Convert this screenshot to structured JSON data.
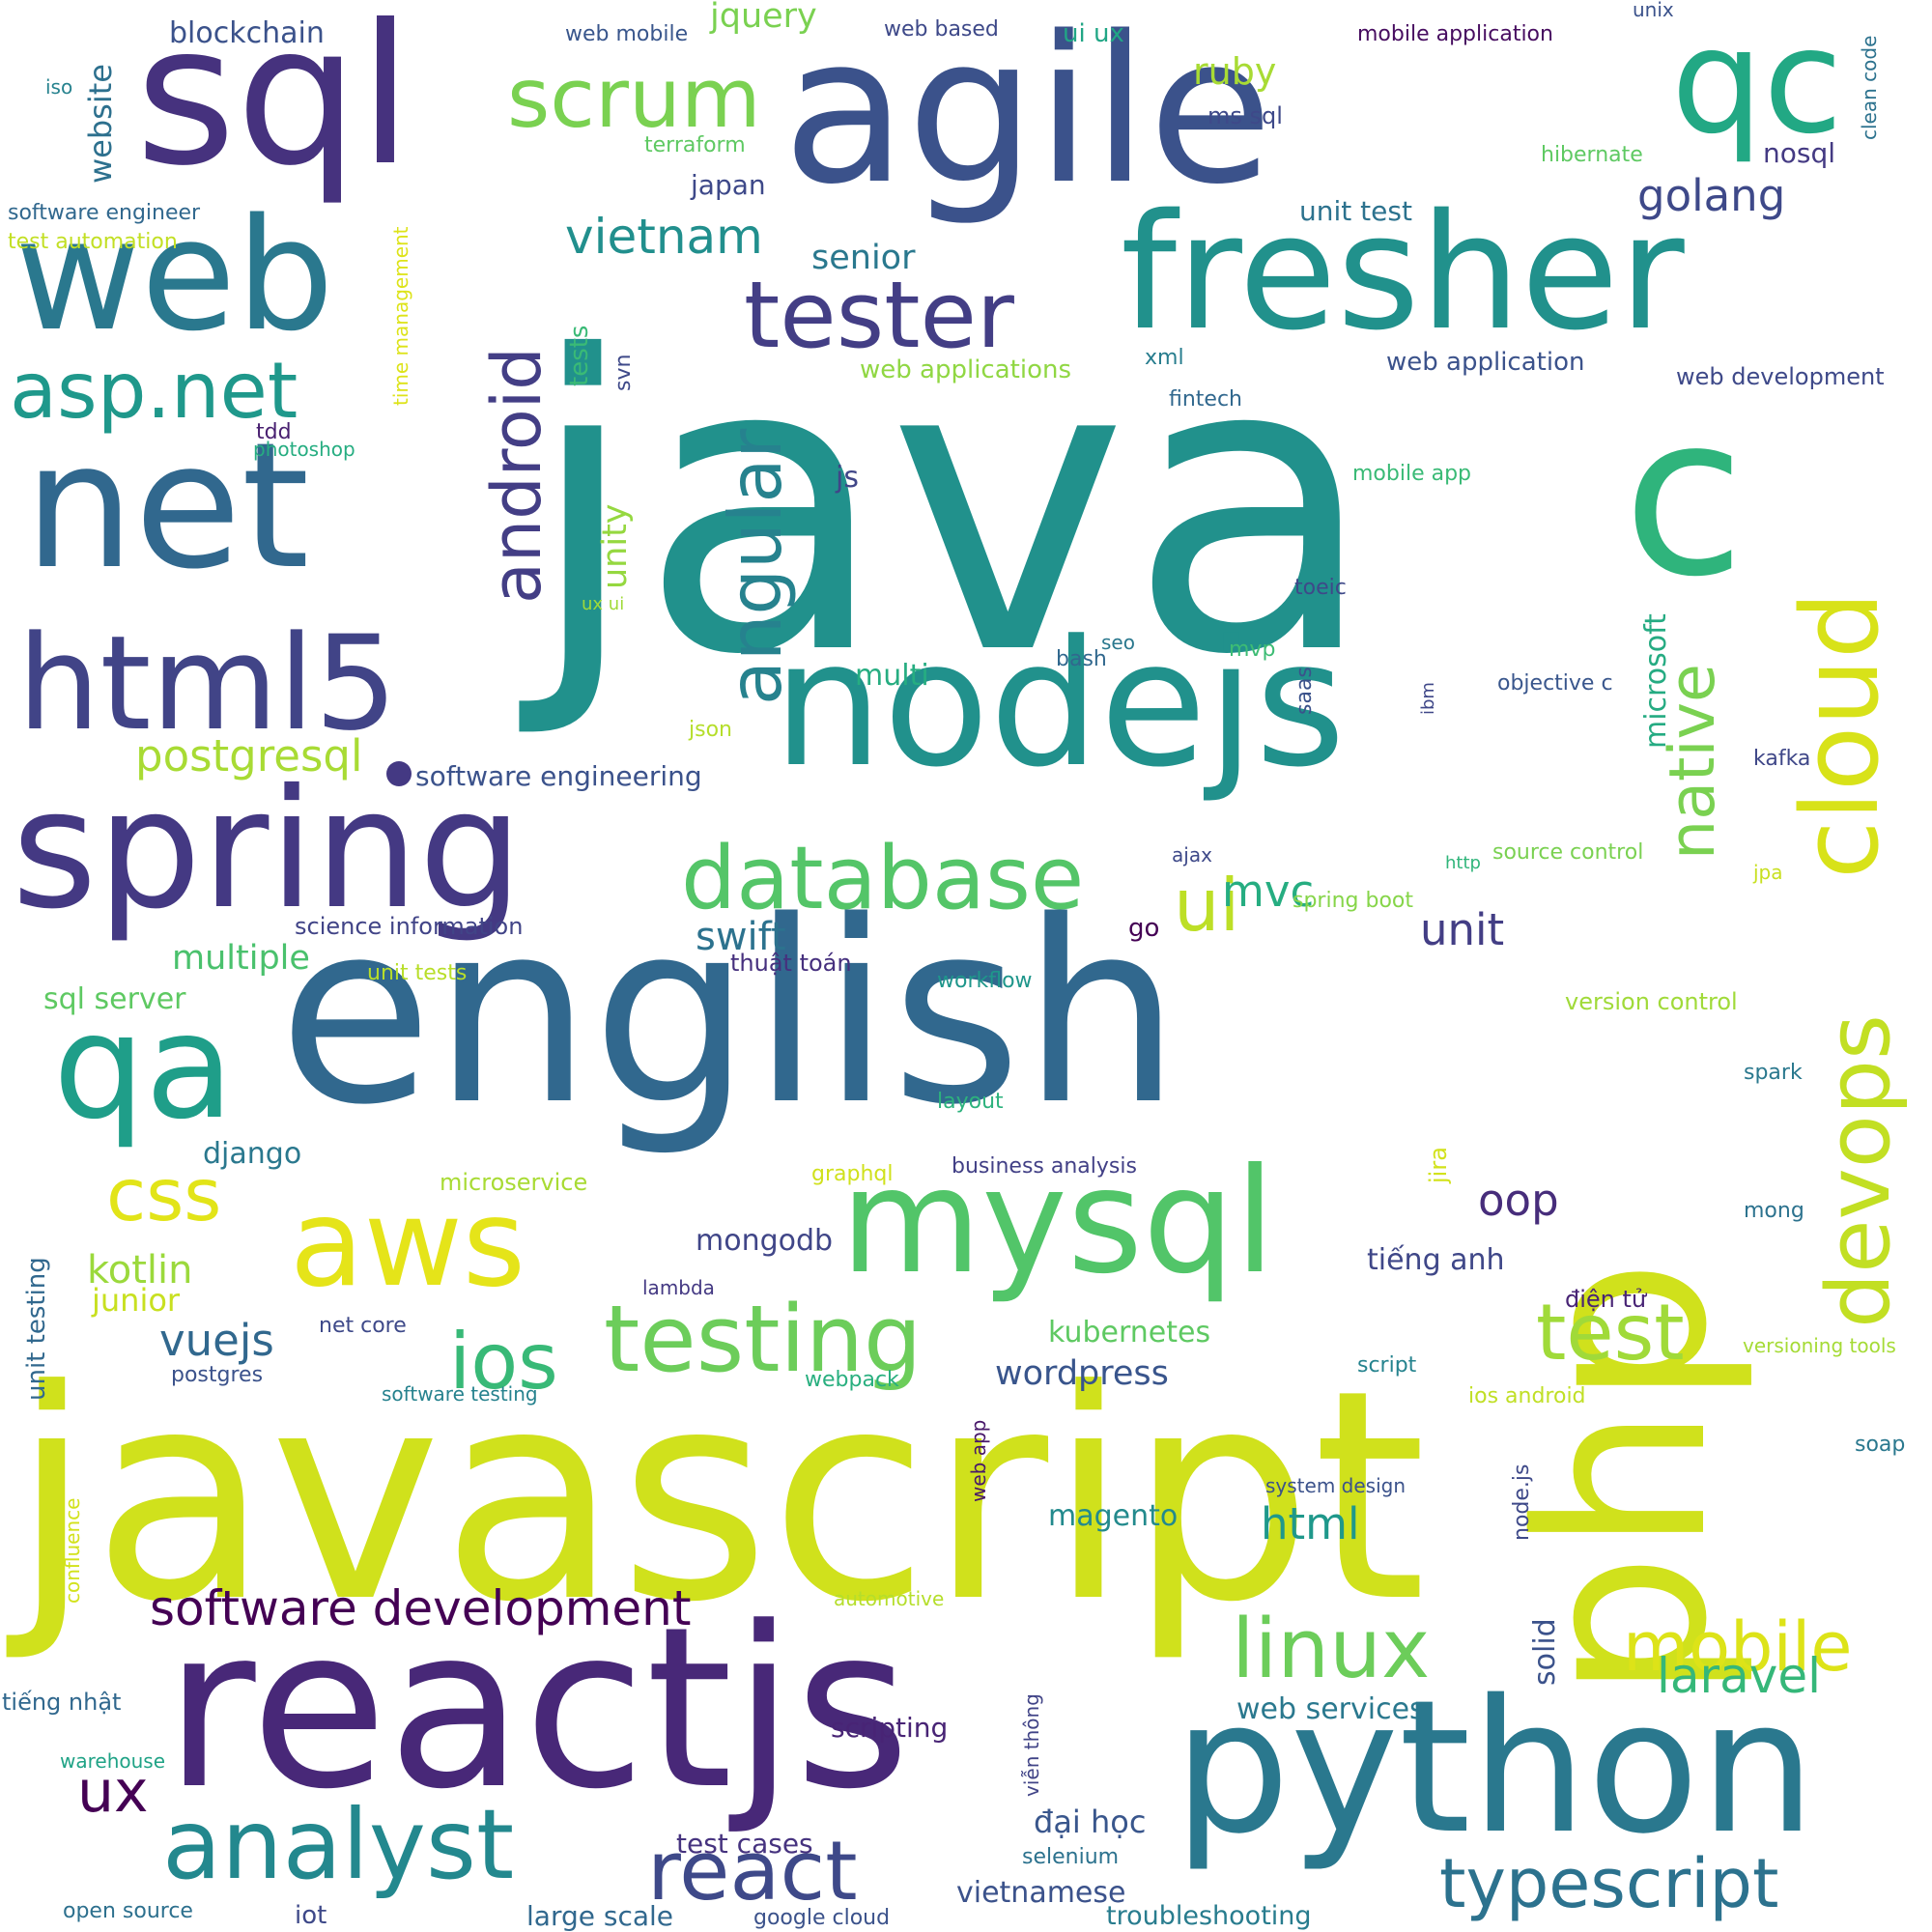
{
  "words": [
    {
      "text": "java",
      "color": "#21918c",
      "vertical": false
    },
    {
      "text": "javascript",
      "color": "#d0e11c",
      "vertical": false
    },
    {
      "text": "english",
      "color": "#31688e",
      "vertical": false
    },
    {
      "text": "reactjs",
      "color": "#482878",
      "vertical": false
    },
    {
      "text": "php",
      "color": "#d0e11c",
      "vertical": true
    },
    {
      "text": "agile",
      "color": "#3b528b",
      "vertical": false
    },
    {
      "text": "python",
      "color": "#2a788e",
      "vertical": false
    },
    {
      "text": "sql",
      "color": "#46327e",
      "vertical": false
    },
    {
      "text": "nodejs",
      "color": "#21918c",
      "vertical": false
    },
    {
      "text": "net",
      "color": "#31688e",
      "vertical": false
    },
    {
      "text": "web",
      "color": "#2a788e",
      "vertical": false
    },
    {
      "text": "fresher",
      "color": "#21918c",
      "vertical": false
    },
    {
      "text": "spring",
      "color": "#443983",
      "vertical": false
    },
    {
      "text": "c",
      "color": "#2fb47c",
      "vertical": false
    },
    {
      "text": "qc",
      "color": "#22a884",
      "vertical": false
    },
    {
      "text": "mysql",
      "color": "#52c569",
      "vertical": false
    },
    {
      "text": "qa",
      "color": "#1f9e89",
      "vertical": false
    },
    {
      "text": "html5",
      "color": "#414487",
      "vertical": false
    },
    {
      "text": "cloud",
      "color": "#d8e219",
      "vertical": true
    },
    {
      "text": "aws",
      "color": "#e5e419",
      "vertical": false
    },
    {
      "text": "tester",
      "color": "#433e85",
      "vertical": false
    },
    {
      "text": "testing",
      "color": "#6ccd5a",
      "vertical": false
    },
    {
      "text": "analyst",
      "color": "#23888e",
      "vertical": false
    },
    {
      "text": "devops",
      "color": "#c2df23",
      "vertical": true
    },
    {
      "text": "database",
      "color": "#54c568",
      "vertical": false
    },
    {
      "text": "scrum",
      "color": "#7ad151",
      "vertical": false
    },
    {
      "text": "asp.net",
      "color": "#1f988b",
      "vertical": false
    },
    {
      "text": "react",
      "color": "#3e4989",
      "vertical": false
    },
    {
      "text": "typescript",
      "color": "#2c728e",
      "vertical": false
    },
    {
      "text": "linux",
      "color": "#6ccd5a",
      "vertical": false
    },
    {
      "text": "test",
      "color": "#a0da39",
      "vertical": false
    },
    {
      "text": "mobile",
      "color": "#dde318",
      "vertical": false
    },
    {
      "text": "android",
      "color": "#433e85",
      "vertical": true
    },
    {
      "text": "angular",
      "color": "#26828e",
      "vertical": true
    },
    {
      "text": "ios",
      "color": "#38b977",
      "vertical": false
    },
    {
      "text": "css",
      "color": "#e2e418",
      "vertical": false
    },
    {
      "text": "native",
      "color": "#7ad151",
      "vertical": true
    },
    {
      "text": "ui",
      "color": "#bddf26",
      "vertical": false
    },
    {
      "text": "software development",
      "color": "#440154",
      "vertical": false
    },
    {
      "text": "ux",
      "color": "#440154",
      "vertical": false
    },
    {
      "text": "vietnam",
      "color": "#218f8d",
      "vertical": false
    },
    {
      "text": "laravel",
      "color": "#35b779",
      "vertical": false
    },
    {
      "text": "golang",
      "color": "#3e4989",
      "vertical": false
    },
    {
      "text": "postgresql",
      "color": "#a8db34",
      "vertical": false
    },
    {
      "text": "vuejs",
      "color": "#31688e",
      "vertical": false
    },
    {
      "text": "unit",
      "color": "#433e85",
      "vertical": false
    },
    {
      "text": "html",
      "color": "#1f988b",
      "vertical": false
    },
    {
      "text": "mvc",
      "color": "#26ad81",
      "vertical": false
    },
    {
      "text": "swift",
      "color": "#2c728e",
      "vertical": false
    },
    {
      "text": "oop",
      "color": "#472d7b",
      "vertical": false
    },
    {
      "text": "kotlin",
      "color": "#9bd93c",
      "vertical": false
    },
    {
      "text": "wordpress",
      "color": "#39558c",
      "vertical": false
    },
    {
      "text": "multiple",
      "color": "#4ac16d",
      "vertical": false
    },
    {
      "text": "senior",
      "color": "#2a788e",
      "vertical": false
    },
    {
      "text": "ruby",
      "color": "#a8db34",
      "vertical": false
    },
    {
      "text": "jquery",
      "color": "#7ad151",
      "vertical": false
    },
    {
      "text": "junior",
      "color": "#c8e020",
      "vertical": false
    },
    {
      "text": "solid",
      "color": "#3b528b",
      "vertical": true
    },
    {
      "text": "microsoft",
      "color": "#25ab82",
      "vertical": true
    },
    {
      "text": "unity",
      "color": "#95d840",
      "vertical": true
    },
    {
      "text": "website",
      "color": "#2d708e",
      "vertical": true
    },
    {
      "text": "mongodb",
      "color": "#404688",
      "vertical": false
    },
    {
      "text": "tiếng anh",
      "color": "#3f4788",
      "vertical": false
    },
    {
      "text": "đại học",
      "color": "#39568c",
      "vertical": false
    },
    {
      "text": "blockchain",
      "color": "#3b528b",
      "vertical": false
    },
    {
      "text": "django",
      "color": "#2a788e",
      "vertical": false
    },
    {
      "text": "magento",
      "color": "#238a8d",
      "vertical": false
    },
    {
      "text": "web services",
      "color": "#2a788e",
      "vertical": false
    },
    {
      "text": "scripting",
      "color": "#482475",
      "vertical": false
    },
    {
      "text": "vietnamese",
      "color": "#3b528b",
      "vertical": false
    },
    {
      "text": "test cases",
      "color": "#46337f",
      "vertical": false
    },
    {
      "text": "large scale",
      "color": "#31688e",
      "vertical": false
    },
    {
      "text": "kubernetes",
      "color": "#5ec962",
      "vertical": false
    },
    {
      "text": "sql server",
      "color": "#5ec962",
      "vertical": false
    },
    {
      "text": "multi",
      "color": "#26ad81",
      "vertical": false
    },
    {
      "text": "unit test",
      "color": "#2c728e",
      "vertical": false
    },
    {
      "text": "software engineering",
      "color": "#3b528b",
      "vertical": false
    },
    {
      "text": "science information",
      "color": "#414487",
      "vertical": false
    },
    {
      "text": "japan",
      "color": "#3e4989",
      "vertical": false
    },
    {
      "text": "nosql",
      "color": "#443a83",
      "vertical": false
    },
    {
      "text": "web applications",
      "color": "#90d743",
      "vertical": false
    },
    {
      "text": "web application",
      "color": "#3b528b",
      "vertical": false
    },
    {
      "text": "web development",
      "color": "#3e4989",
      "vertical": false
    },
    {
      "text": "business analysis",
      "color": "#424086",
      "vertical": false
    },
    {
      "text": "troubleshooting",
      "color": "#287c8e",
      "vertical": false
    },
    {
      "text": "software engineer",
      "color": "#31688e",
      "vertical": false
    },
    {
      "text": "test automation",
      "color": "#c2df23",
      "vertical": false
    },
    {
      "text": "mobile application",
      "color": "#470d60",
      "vertical": false
    },
    {
      "text": "web mobile",
      "color": "#39568c",
      "vertical": false
    },
    {
      "text": "web based",
      "color": "#3e4989",
      "vertical": false
    },
    {
      "text": "ui ux",
      "color": "#21a685",
      "vertical": false
    },
    {
      "text": "ms sql",
      "color": "#3e4989",
      "vertical": false
    },
    {
      "text": "terraform",
      "color": "#5ec962",
      "vertical": false
    },
    {
      "text": "hibernate",
      "color": "#5ec962",
      "vertical": false
    },
    {
      "text": "unix",
      "color": "#3b528b",
      "vertical": false
    },
    {
      "text": "iso",
      "color": "#26828e",
      "vertical": false
    },
    {
      "text": "clean code",
      "color": "#2c728e",
      "vertical": true
    },
    {
      "text": "time management",
      "color": "#dde318",
      "vertical": true
    },
    {
      "text": "tests",
      "color": "#3aba76",
      "vertical": true
    },
    {
      "text": "svn",
      "color": "#3e4989",
      "vertical": true
    },
    {
      "text": "xml",
      "color": "#287d8e",
      "vertical": false
    },
    {
      "text": "fintech",
      "color": "#31688e",
      "vertical": false
    },
    {
      "text": "tdd",
      "color": "#481f70",
      "vertical": false
    },
    {
      "text": "photoshop",
      "color": "#26ad81",
      "vertical": false
    },
    {
      "text": "js",
      "color": "#404688",
      "vertical": false
    },
    {
      "text": "mobile app",
      "color": "#3aba76",
      "vertical": false
    },
    {
      "text": "ux ui",
      "color": "#a0da39",
      "vertical": false
    },
    {
      "text": "toeic",
      "color": "#3e4989",
      "vertical": false
    },
    {
      "text": "seo",
      "color": "#2a788e",
      "vertical": false
    },
    {
      "text": "bash",
      "color": "#31688e",
      "vertical": false
    },
    {
      "text": "mvp",
      "color": "#3dbc74",
      "vertical": false
    },
    {
      "text": "saas",
      "color": "#3b528b",
      "vertical": true
    },
    {
      "text": "ibm",
      "color": "#3f4788",
      "vertical": true
    },
    {
      "text": "objective c",
      "color": "#39568c",
      "vertical": false
    },
    {
      "text": "json",
      "color": "#b5de2b",
      "vertical": false
    },
    {
      "text": "kafka",
      "color": "#3f4788",
      "vertical": false
    },
    {
      "text": "ajax",
      "color": "#3e4989",
      "vertical": false
    },
    {
      "text": "http",
      "color": "#31b57b",
      "vertical": false
    },
    {
      "text": "source control",
      "color": "#7ad151",
      "vertical": false
    },
    {
      "text": "jpa",
      "color": "#c8e020",
      "vertical": false
    },
    {
      "text": "spring boot",
      "color": "#86d549",
      "vertical": false
    },
    {
      "text": "go",
      "color": "#440154",
      "vertical": false
    },
    {
      "text": "thuật toán",
      "color": "#46307e",
      "vertical": false
    },
    {
      "text": "unit tests",
      "color": "#b8de29",
      "vertical": false
    },
    {
      "text": "workflow",
      "color": "#1f968b",
      "vertical": false
    },
    {
      "text": "version control",
      "color": "#a0da39",
      "vertical": false
    },
    {
      "text": "spark",
      "color": "#2a788e",
      "vertical": false
    },
    {
      "text": "layout",
      "color": "#2db27d",
      "vertical": false
    },
    {
      "text": "jira",
      "color": "#d2e21b",
      "vertical": true
    },
    {
      "text": "graphql",
      "color": "#d0e11c",
      "vertical": false
    },
    {
      "text": "microservice",
      "color": "#a8db34",
      "vertical": false
    },
    {
      "text": "mong",
      "color": "#2c728e",
      "vertical": false
    },
    {
      "text": "unit testing",
      "color": "#31688e",
      "vertical": true
    },
    {
      "text": "lambda",
      "color": "#443983",
      "vertical": false
    },
    {
      "text": "net core",
      "color": "#3e4989",
      "vertical": false
    },
    {
      "text": "điện tử",
      "color": "#482475",
      "vertical": false
    },
    {
      "text": "postgres",
      "color": "#3b528b",
      "vertical": false
    },
    {
      "text": "software testing",
      "color": "#26828e",
      "vertical": false
    },
    {
      "text": "webpack",
      "color": "#29af7f",
      "vertical": false
    },
    {
      "text": "script",
      "color": "#25838e",
      "vertical": false
    },
    {
      "text": "versioning tools",
      "color": "#a5db36",
      "vertical": false
    },
    {
      "text": "ios android",
      "color": "#c0df25",
      "vertical": false
    },
    {
      "text": "soap",
      "color": "#2a788e",
      "vertical": false
    },
    {
      "text": "web app",
      "color": "#48186a",
      "vertical": true
    },
    {
      "text": "system design",
      "color": "#3b528b",
      "vertical": false
    },
    {
      "text": "node.js",
      "color": "#3e4989",
      "vertical": true
    },
    {
      "text": "confluence",
      "color": "#d2e21b",
      "vertical": true
    },
    {
      "text": "automotive",
      "color": "#b5de2b",
      "vertical": false
    },
    {
      "text": "tiếng nhật",
      "color": "#31688e",
      "vertical": false
    },
    {
      "text": "warehouse",
      "color": "#20a386",
      "vertical": false
    },
    {
      "text": "viễn thông",
      "color": "#414487",
      "vertical": true
    },
    {
      "text": "selenium",
      "color": "#2c728e",
      "vertical": false
    },
    {
      "text": "open source",
      "color": "#2d708e",
      "vertical": false
    },
    {
      "text": "iot",
      "color": "#3e4989",
      "vertical": false
    },
    {
      "text": "google cloud",
      "color": "#3b528b",
      "vertical": false
    }
  ]
}
